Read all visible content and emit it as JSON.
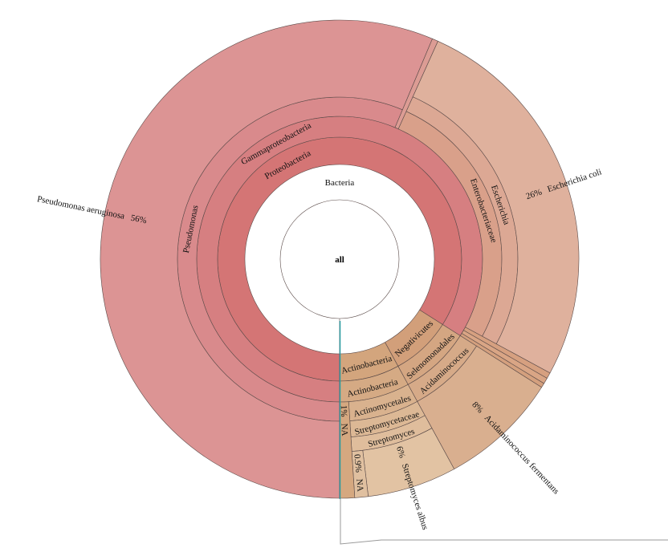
{
  "chart_data": {
    "type": "sunburst",
    "title": "",
    "root": {
      "name": "all",
      "children": [
        {
          "name": "Bacteria",
          "color": "#cf6b6b",
          "children": [
            {
              "name": "Proteobacteria",
              "color": "#d47575",
              "children": [
                {
                  "name": "Gammaproteobacteria",
                  "color": "#d67f81",
                  "children": [
                    {
                      "name": "Pseudomonas",
                      "color": "#d98a8c",
                      "children": [
                        {
                          "name": "Pseudomonas aeruginosa",
                          "percent": "56%",
                          "value": 56,
                          "color": "#dc9494"
                        }
                      ]
                    },
                    {
                      "name": "",
                      "value": 0.4,
                      "color": "#dc9c94"
                    },
                    {
                      "name": "Enterobacteriaceae",
                      "color": "#d9a08a",
                      "children": [
                        {
                          "name": "Escherichia",
                          "color": "#dca894",
                          "children": [
                            {
                              "name": "Escherichia coli",
                              "percent": "26%",
                              "value": 26,
                              "color": "#dfb19d"
                            }
                          ]
                        }
                      ]
                    },
                    {
                      "name": "",
                      "value": 0.4,
                      "color": "#d6a080"
                    },
                    {
                      "name": "",
                      "value": 0.4,
                      "color": "#d9a585"
                    },
                    {
                      "name": "",
                      "value": 0.3,
                      "color": "#d4a07e"
                    }
                  ]
                }
              ]
            },
            {
              "name": "Negativicutes",
              "color": "#d29f7a",
              "children": [
                {
                  "name": "Selenomonadales",
                  "color": "#d4a682",
                  "children": [
                    {
                      "name": "Acidaminococcus",
                      "color": "#d6aa88",
                      "children": [
                        {
                          "name": "Acidaminococcus fermentans",
                          "percent": "8%",
                          "value": 8,
                          "color": "#d9af8f"
                        }
                      ]
                    }
                  ]
                }
              ]
            },
            {
              "name": "Actinobacteria",
              "color": "#d3a57d",
              "children": [
                {
                  "name": "Actinobacteria",
                  "color": "#d5aa84",
                  "children": [
                    {
                      "name": "Actinomycetales",
                      "color": "#d9b28e",
                      "children": [
                        {
                          "name": "Streptomycetaceae",
                          "color": "#dcb895",
                          "children": [
                            {
                              "name": "Streptomyces",
                              "color": "#dfbd9c",
                              "children": [
                                {
                                  "name": "Streptomyces albus",
                                  "percent": "6%",
                                  "value": 6,
                                  "color": "#e2c3a3"
                                },
                                {
                                  "name": "NA",
                                  "percent": "0.9%",
                                  "value": 0.9,
                                  "color": "#e0c0a0"
                                }
                              ]
                            }
                          ]
                        }
                      ]
                    },
                    {
                      "name": "NA",
                      "percent": "1%",
                      "value": 1,
                      "color": "#d5a880"
                    }
                  ]
                }
              ]
            }
          ]
        }
      ]
    }
  }
}
